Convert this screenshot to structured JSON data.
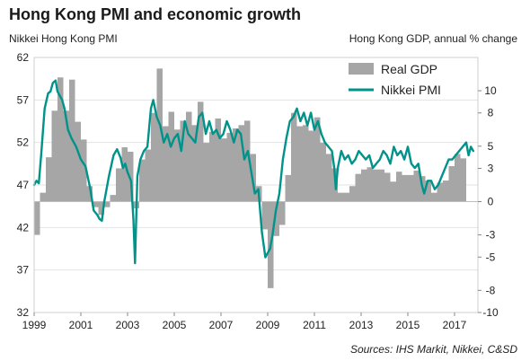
{
  "header": {
    "title": "Hong Kong PMI and economic growth",
    "left_axis_caption": "Nikkei Hong Kong PMI",
    "right_axis_caption": "Hong Kong GDP, annual % change"
  },
  "footer": {
    "source": "Sources: IHS Markit, Nikkei, C&SD"
  },
  "chart_data": {
    "type": "bar+line",
    "x_ticks": [
      "1999",
      "2001",
      "2003",
      "2005",
      "2007",
      "2009",
      "2011",
      "2013",
      "2015",
      "2017"
    ],
    "xlim": [
      1999.0,
      2018.0
    ],
    "left_axis": {
      "ticks": [
        32,
        37,
        42,
        47,
        52,
        57,
        62
      ],
      "ylim": [
        32,
        62
      ]
    },
    "right_axis": {
      "ticks": [
        -10,
        -8,
        -5,
        -3,
        0,
        3,
        5,
        8,
        10
      ],
      "ylim": [
        -10,
        13
      ]
    },
    "legend": {
      "placement": "top-right"
    },
    "colors": {
      "gdp_bars": "#a6a6a6",
      "pmi_line": "#00938a"
    },
    "gdp_series": {
      "name": "Real GDP",
      "axis": "right",
      "quarters": [
        "1999Q1",
        "1999Q2",
        "1999Q3",
        "1999Q4",
        "2000Q1",
        "2000Q2",
        "2000Q3",
        "2000Q4",
        "2001Q1",
        "2001Q2",
        "2001Q3",
        "2001Q4",
        "2002Q1",
        "2002Q2",
        "2002Q3",
        "2002Q4",
        "2003Q1",
        "2003Q2",
        "2003Q3",
        "2003Q4",
        "2004Q1",
        "2004Q2",
        "2004Q3",
        "2004Q4",
        "2005Q1",
        "2005Q2",
        "2005Q3",
        "2005Q4",
        "2006Q1",
        "2006Q2",
        "2006Q3",
        "2006Q4",
        "2007Q1",
        "2007Q2",
        "2007Q3",
        "2007Q4",
        "2008Q1",
        "2008Q2",
        "2008Q3",
        "2008Q4",
        "2009Q1",
        "2009Q2",
        "2009Q3",
        "2009Q4",
        "2010Q1",
        "2010Q2",
        "2010Q3",
        "2010Q4",
        "2011Q1",
        "2011Q2",
        "2011Q3",
        "2011Q4",
        "2012Q1",
        "2012Q2",
        "2012Q3",
        "2012Q4",
        "2013Q1",
        "2013Q2",
        "2013Q3",
        "2013Q4",
        "2014Q1",
        "2014Q2",
        "2014Q3",
        "2014Q4",
        "2015Q1",
        "2015Q2",
        "2015Q3",
        "2015Q4",
        "2016Q1",
        "2016Q2",
        "2016Q3",
        "2016Q4",
        "2017Q1",
        "2017Q2"
      ],
      "values": [
        -3.0,
        0.8,
        4.0,
        8.2,
        11.2,
        8.2,
        11.0,
        7.2,
        5.6,
        1.4,
        -0.5,
        -1.2,
        -0.5,
        0.6,
        3.0,
        4.9,
        4.5,
        -0.6,
        3.8,
        4.7,
        8.0,
        12.0,
        6.8,
        8.1,
        6.5,
        7.3,
        8.1,
        6.9,
        9.0,
        5.3,
        6.3,
        7.5,
        5.7,
        6.2,
        6.6,
        6.9,
        7.3,
        4.3,
        1.4,
        -2.5,
        -7.8,
        -3.1,
        -2.1,
        2.4,
        8.0,
        6.8,
        6.9,
        6.4,
        7.6,
        5.3,
        4.3,
        3.0,
        0.8,
        0.8,
        1.4,
        2.5,
        2.9,
        3.1,
        2.9,
        2.9,
        2.6,
        1.8,
        2.7,
        2.4,
        2.4,
        2.8,
        2.3,
        1.9,
        0.8,
        1.7,
        1.9,
        3.2,
        4.3,
        3.9
      ]
    },
    "pmi_series": {
      "name": "Nikkei PMI",
      "axis": "left",
      "x": [
        1999.0,
        1999.1,
        1999.2,
        1999.3,
        1999.45,
        1999.6,
        1999.7,
        1999.8,
        1999.92,
        2000.0,
        2000.1,
        2000.2,
        2000.3,
        2000.45,
        2000.6,
        2000.8,
        2001.0,
        2001.2,
        2001.4,
        2001.55,
        2001.7,
        2001.8,
        2001.9,
        2002.0,
        2002.2,
        2002.4,
        2002.55,
        2002.7,
        2002.8,
        2002.9,
        2003.0,
        2003.15,
        2003.25,
        2003.32,
        2003.42,
        2003.55,
        2003.7,
        2003.85,
        2004.0,
        2004.1,
        2004.25,
        2004.4,
        2004.55,
        2004.7,
        2004.85,
        2005.0,
        2005.15,
        2005.3,
        2005.45,
        2005.6,
        2005.75,
        2005.9,
        2006.05,
        2006.2,
        2006.35,
        2006.5,
        2006.65,
        2006.8,
        2006.95,
        2007.1,
        2007.25,
        2007.4,
        2007.55,
        2007.7,
        2007.85,
        2008.0,
        2008.15,
        2008.3,
        2008.45,
        2008.6,
        2008.75,
        2008.9,
        2009.0,
        2009.1,
        2009.2,
        2009.35,
        2009.5,
        2009.65,
        2009.8,
        2009.95,
        2010.1,
        2010.25,
        2010.4,
        2010.55,
        2010.7,
        2010.85,
        2011.0,
        2011.15,
        2011.3,
        2011.45,
        2011.6,
        2011.75,
        2011.85,
        2011.92,
        2012.0,
        2012.15,
        2012.3,
        2012.45,
        2012.6,
        2012.75,
        2012.9,
        2013.05,
        2013.2,
        2013.35,
        2013.5,
        2013.65,
        2013.8,
        2013.95,
        2014.1,
        2014.25,
        2014.4,
        2014.55,
        2014.7,
        2014.85,
        2015.0,
        2015.15,
        2015.3,
        2015.45,
        2015.6,
        2015.7,
        2015.85,
        2016.0,
        2016.15,
        2016.3,
        2016.45,
        2016.6,
        2016.75,
        2016.9,
        2017.05,
        2017.2,
        2017.35,
        2017.5,
        2017.6,
        2017.7,
        2017.8
      ],
      "values": [
        47.0,
        47.5,
        47.2,
        50.5,
        56.0,
        57.8,
        58.0,
        59.0,
        59.3,
        58.0,
        57.5,
        57.0,
        56.0,
        53.5,
        52.5,
        51.5,
        50.0,
        49.2,
        46.6,
        44.0,
        43.5,
        43.0,
        42.8,
        45.0,
        48.0,
        50.5,
        51.2,
        50.2,
        49.0,
        49.5,
        48.5,
        47.5,
        43.0,
        37.8,
        48.0,
        50.0,
        51.0,
        51.5,
        56.0,
        57.0,
        55.0,
        54.0,
        52.0,
        53.0,
        51.5,
        52.5,
        53.0,
        51.0,
        54.5,
        53.0,
        52.5,
        52.0,
        55.0,
        55.5,
        53.0,
        54.5,
        53.0,
        53.5,
        52.5,
        53.0,
        54.5,
        53.5,
        52.0,
        53.5,
        53.0,
        50.0,
        51.0,
        48.5,
        46.0,
        46.5,
        41.5,
        38.5,
        39.0,
        39.5,
        41.0,
        44.0,
        46.0,
        50.0,
        52.5,
        54.5,
        55.0,
        56.0,
        54.5,
        55.5,
        54.0,
        55.5,
        53.5,
        54.5,
        53.0,
        52.0,
        51.5,
        51.0,
        49.0,
        46.5,
        49.0,
        51.0,
        50.0,
        50.5,
        49.5,
        50.0,
        51.0,
        50.5,
        50.0,
        50.5,
        49.0,
        49.5,
        50.0,
        51.0,
        50.5,
        49.5,
        51.5,
        50.5,
        51.0,
        50.0,
        51.5,
        49.5,
        49.0,
        49.5,
        47.0,
        46.0,
        47.5,
        47.5,
        46.5,
        47.0,
        48.0,
        49.0,
        50.0,
        50.0,
        50.5,
        51.0,
        51.5,
        52.0,
        50.5,
        51.5,
        51.0
      ]
    }
  }
}
